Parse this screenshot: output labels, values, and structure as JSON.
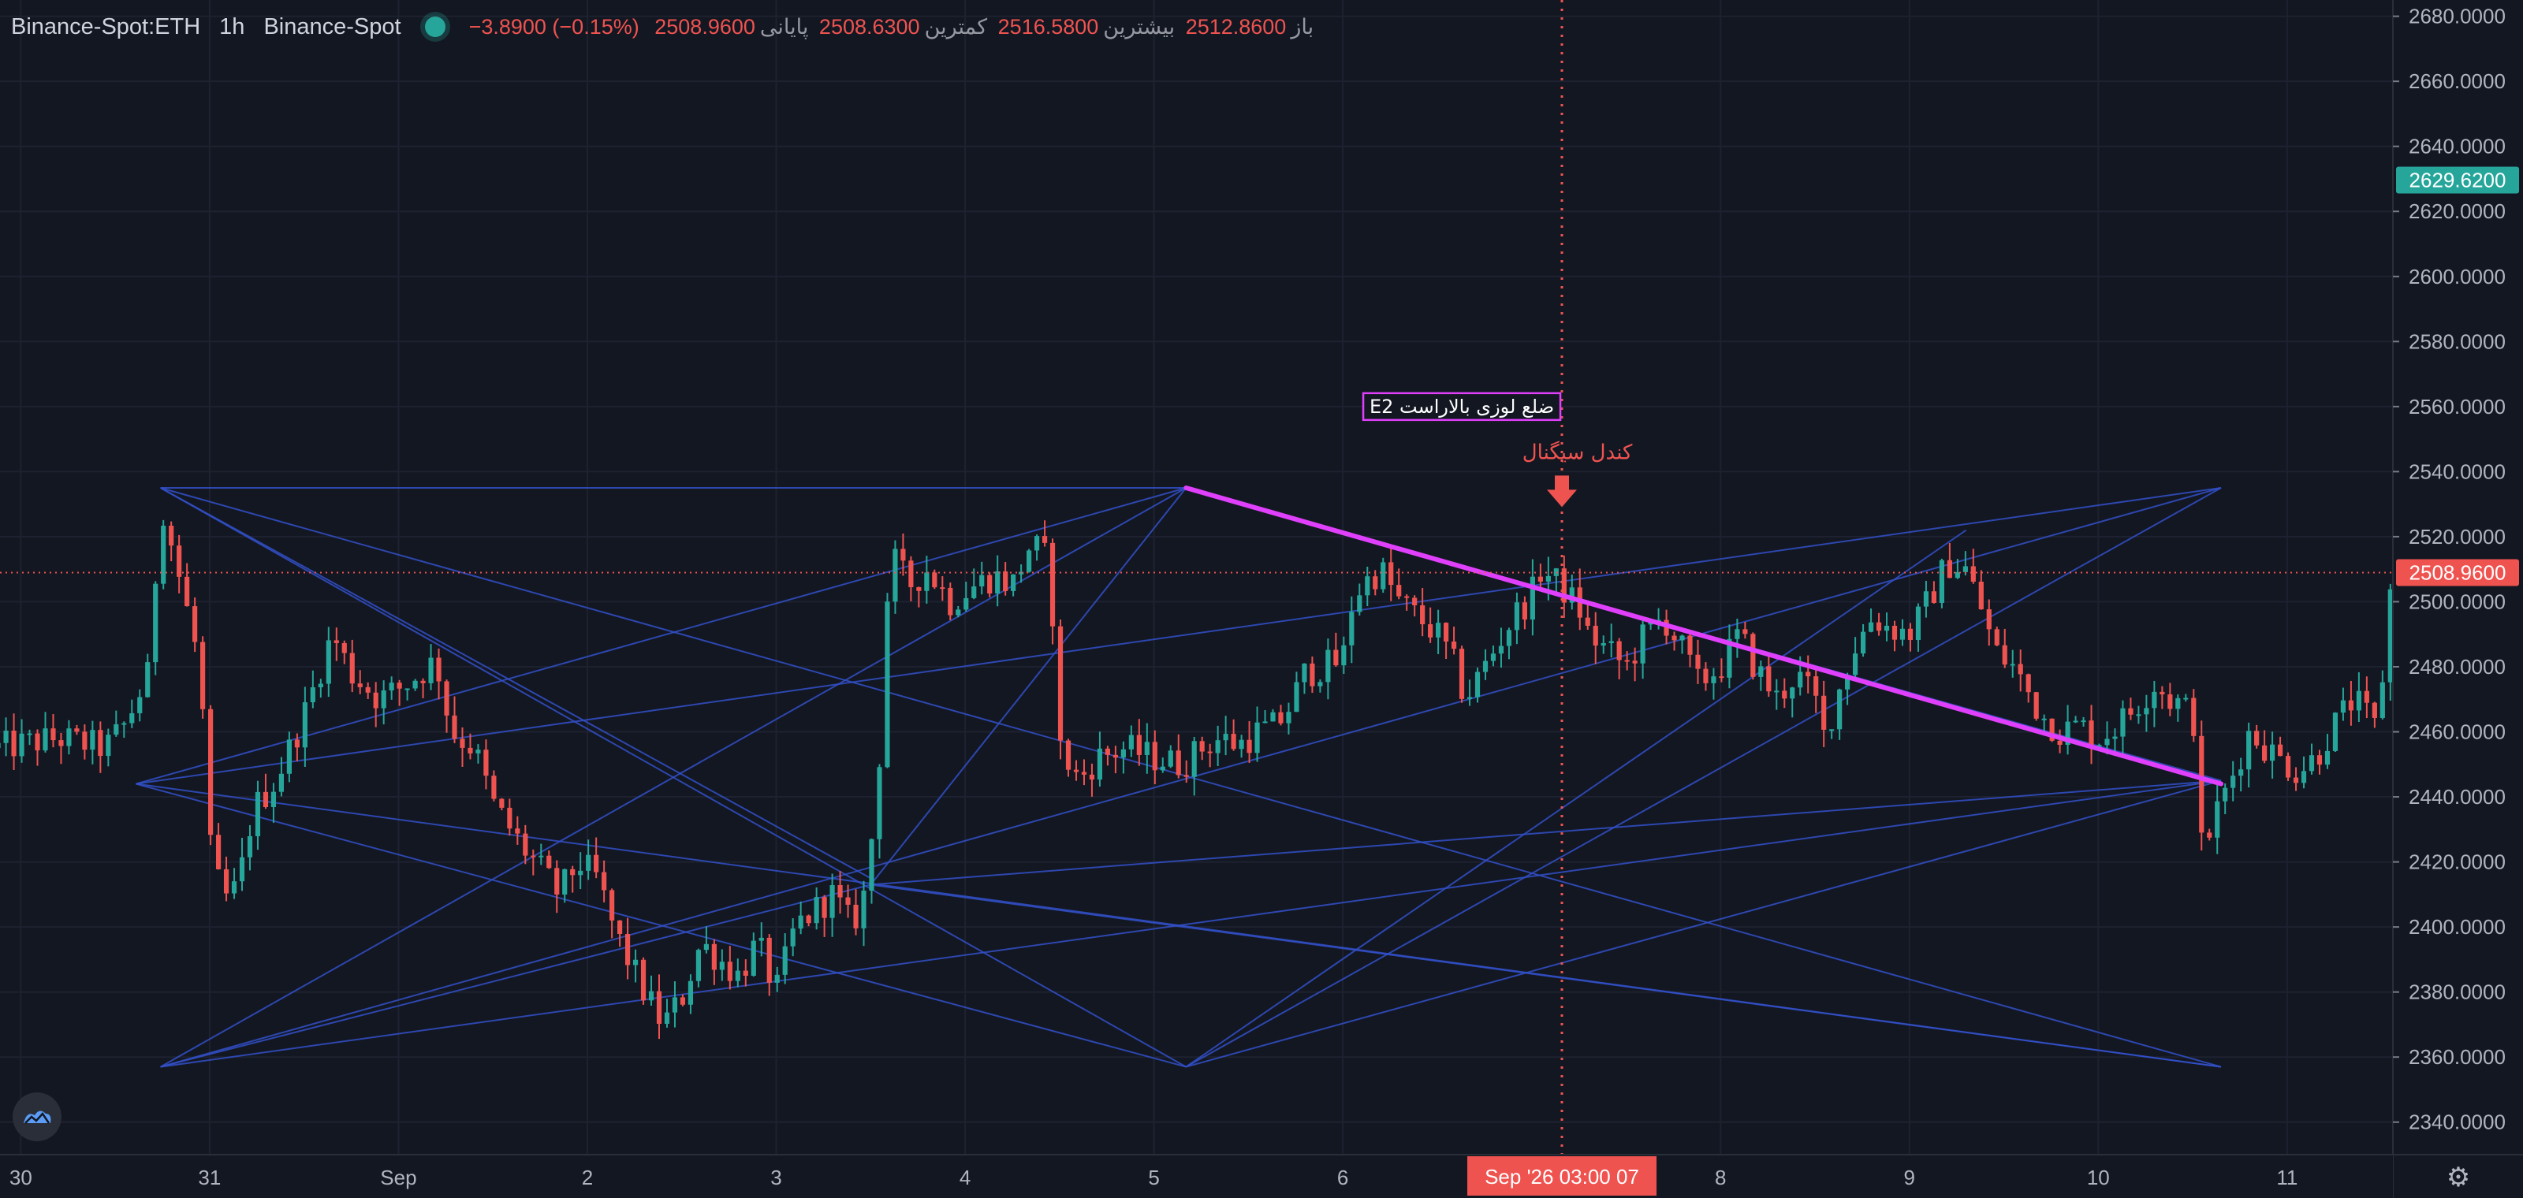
{
  "header": {
    "symbol": "Binance-Spot:ETH",
    "interval": "1h",
    "exchange": "Binance-Spot",
    "ohlc": {
      "open_label": "باز",
      "open": "2512.8600",
      "high_label": "بیشترین",
      "high": "2516.5800",
      "low_label": "کمترین",
      "low": "2508.6300",
      "close_label": "پایانی",
      "close": "2508.9600",
      "change": "−3.8900 (−0.15%)"
    }
  },
  "colors": {
    "background": "#131722",
    "grid": "#1e2230",
    "up": "#26a69a",
    "down": "#ef5350",
    "pattern_lines": "#3250c8",
    "trendline": "#e040fb"
  },
  "chart_data": {
    "type": "candlestick",
    "timeframe": "1h",
    "ylim": [
      2330,
      2685
    ],
    "y_ticks": [
      2340,
      2360,
      2380,
      2400,
      2420,
      2440,
      2460,
      2480,
      2500,
      2520,
      2540,
      2560,
      2580,
      2600,
      2620,
      2640,
      2660,
      2680
    ],
    "y_tick_labels": [
      "2340.0000",
      "2360.0000",
      "2380.0000",
      "2400.0000",
      "2420.0000",
      "2440.0000",
      "2460.0000",
      "2480.0000",
      "2500.0000",
      "2520.0000",
      "2540.0000",
      "2560.0000",
      "2580.0000",
      "2600.0000",
      "2620.0000",
      "2640.0000",
      "2660.0000",
      "2680.0000"
    ],
    "x_ticks": [
      {
        "day": 30,
        "label": "30"
      },
      {
        "day": 31,
        "label": "31"
      },
      {
        "day": 32,
        "label": "Sep"
      },
      {
        "day": 33,
        "label": "2"
      },
      {
        "day": 34,
        "label": "3"
      },
      {
        "day": 35,
        "label": "4"
      },
      {
        "day": 36,
        "label": "5"
      },
      {
        "day": 37,
        "label": "6"
      },
      {
        "day": 39,
        "label": "8"
      },
      {
        "day": 40,
        "label": "9"
      },
      {
        "day": 41,
        "label": "10"
      },
      {
        "day": 42,
        "label": "11"
      }
    ],
    "x_range_days": [
      29.89,
      42.56
    ],
    "price_path": [
      [
        29.88,
        2455
      ],
      [
        30.2,
        2458
      ],
      [
        30.45,
        2455
      ],
      [
        30.55,
        2462
      ],
      [
        30.68,
        2478
      ],
      [
        30.74,
        2532
      ],
      [
        30.85,
        2505
      ],
      [
        30.95,
        2480
      ],
      [
        31.0,
        2425
      ],
      [
        31.07,
        2408
      ],
      [
        31.15,
        2412
      ],
      [
        31.23,
        2436
      ],
      [
        31.35,
        2445
      ],
      [
        31.5,
        2465
      ],
      [
        31.65,
        2490
      ],
      [
        31.75,
        2478
      ],
      [
        31.9,
        2470
      ],
      [
        32.05,
        2475
      ],
      [
        32.2,
        2482
      ],
      [
        32.28,
        2460
      ],
      [
        32.4,
        2455
      ],
      [
        32.5,
        2438
      ],
      [
        32.65,
        2425
      ],
      [
        32.75,
        2418
      ],
      [
        32.85,
        2410
      ],
      [
        32.95,
        2420
      ],
      [
        33.05,
        2415
      ],
      [
        33.15,
        2398
      ],
      [
        33.3,
        2380
      ],
      [
        33.4,
        2370
      ],
      [
        33.5,
        2378
      ],
      [
        33.6,
        2395
      ],
      [
        33.7,
        2390
      ],
      [
        33.8,
        2385
      ],
      [
        33.9,
        2395
      ],
      [
        34.0,
        2380
      ],
      [
        34.1,
        2400
      ],
      [
        34.2,
        2405
      ],
      [
        34.3,
        2410
      ],
      [
        34.4,
        2400
      ],
      [
        34.48,
        2412
      ],
      [
        34.55,
        2455
      ],
      [
        34.6,
        2515
      ],
      [
        34.7,
        2505
      ],
      [
        34.8,
        2510
      ],
      [
        34.92,
        2500
      ],
      [
        35.05,
        2505
      ],
      [
        35.15,
        2508
      ],
      [
        35.25,
        2505
      ],
      [
        35.35,
        2518
      ],
      [
        35.45,
        2512
      ],
      [
        35.5,
        2455
      ],
      [
        35.6,
        2445
      ],
      [
        35.7,
        2452
      ],
      [
        35.85,
        2455
      ],
      [
        36.0,
        2452
      ],
      [
        36.15,
        2450
      ],
      [
        36.25,
        2455
      ],
      [
        36.35,
        2458
      ],
      [
        36.45,
        2456
      ],
      [
        36.55,
        2460
      ],
      [
        36.65,
        2462
      ],
      [
        36.72,
        2468
      ],
      [
        36.8,
        2478
      ],
      [
        36.9,
        2480
      ],
      [
        37.0,
        2482
      ],
      [
        37.05,
        2500
      ],
      [
        37.1,
        2505
      ],
      [
        37.2,
        2510
      ],
      [
        37.3,
        2500
      ],
      [
        37.4,
        2495
      ],
      [
        37.5,
        2490
      ],
      [
        37.58,
        2482
      ],
      [
        37.65,
        2470
      ],
      [
        37.7,
        2475
      ],
      [
        37.8,
        2485
      ],
      [
        37.9,
        2495
      ],
      [
        38.0,
        2502
      ],
      [
        38.05,
        2510
      ],
      [
        38.15,
        2505
      ],
      [
        38.25,
        2498
      ],
      [
        38.3,
        2490
      ],
      [
        38.4,
        2485
      ],
      [
        38.5,
        2480
      ],
      [
        38.6,
        2490
      ],
      [
        38.7,
        2495
      ],
      [
        38.8,
        2485
      ],
      [
        38.88,
        2475
      ],
      [
        39.0,
        2480
      ],
      [
        39.1,
        2490
      ],
      [
        39.18,
        2480
      ],
      [
        39.3,
        2470
      ],
      [
        39.4,
        2478
      ],
      [
        39.5,
        2470
      ],
      [
        39.55,
        2458
      ],
      [
        39.6,
        2468
      ],
      [
        39.7,
        2485
      ],
      [
        39.8,
        2495
      ],
      [
        39.9,
        2492
      ],
      [
        40.0,
        2490
      ],
      [
        40.1,
        2500
      ],
      [
        40.2,
        2512
      ],
      [
        40.3,
        2510
      ],
      [
        40.4,
        2495
      ],
      [
        40.45,
        2485
      ],
      [
        40.55,
        2480
      ],
      [
        40.6,
        2475
      ],
      [
        40.7,
        2465
      ],
      [
        40.8,
        2460
      ],
      [
        40.9,
        2462
      ],
      [
        41.0,
        2458
      ],
      [
        41.1,
        2462
      ],
      [
        41.2,
        2468
      ],
      [
        41.3,
        2475
      ],
      [
        41.38,
        2470
      ],
      [
        41.45,
        2468
      ],
      [
        41.52,
        2462
      ],
      [
        41.55,
        2420
      ],
      [
        41.6,
        2432
      ],
      [
        41.7,
        2445
      ],
      [
        41.8,
        2460
      ],
      [
        41.95,
        2452
      ],
      [
        42.05,
        2448
      ],
      [
        42.15,
        2452
      ],
      [
        42.25,
        2462
      ],
      [
        42.35,
        2470
      ],
      [
        42.42,
        2465
      ],
      [
        42.48,
        2460
      ],
      [
        42.53,
        2495
      ],
      [
        42.565,
        2512
      ],
      [
        42.58,
        2629
      ]
    ],
    "pattern_lines": [
      [
        [
          30.74,
          2535
        ],
        [
          36.17,
          2357
        ]
      ],
      [
        [
          30.74,
          2535
        ],
        [
          41.65,
          2357
        ]
      ],
      [
        [
          30.74,
          2535
        ],
        [
          34.5,
          2415
        ]
      ],
      [
        [
          30.74,
          2535
        ],
        [
          36.17,
          2535
        ]
      ],
      [
        [
          30.74,
          2357
        ],
        [
          36.17,
          2535
        ]
      ],
      [
        [
          30.74,
          2357
        ],
        [
          41.65,
          2535
        ]
      ],
      [
        [
          30.74,
          2357
        ],
        [
          41.65,
          2445
        ]
      ],
      [
        [
          30.74,
          2357
        ],
        [
          34.5,
          2413
        ]
      ],
      [
        [
          30.74,
          2357
        ],
        [
          30.74,
          2357
        ]
      ],
      [
        [
          30.61,
          2444
        ],
        [
          36.17,
          2535
        ]
      ],
      [
        [
          30.61,
          2444
        ],
        [
          41.65,
          2535
        ]
      ],
      [
        [
          30.61,
          2444
        ],
        [
          36.17,
          2357
        ]
      ],
      [
        [
          30.61,
          2444
        ],
        [
          41.65,
          2357
        ]
      ],
      [
        [
          36.17,
          2535
        ],
        [
          41.65,
          2445
        ]
      ],
      [
        [
          36.17,
          2357
        ],
        [
          41.65,
          2445
        ]
      ],
      [
        [
          36.17,
          2357
        ],
        [
          41.65,
          2535
        ]
      ],
      [
        [
          36.17,
          2357
        ],
        [
          40.3,
          2522
        ]
      ],
      [
        [
          34.5,
          2413
        ],
        [
          41.65,
          2445
        ]
      ],
      [
        [
          34.5,
          2413
        ],
        [
          41.65,
          2357
        ]
      ],
      [
        [
          34.5,
          2413
        ],
        [
          36.17,
          2535
        ]
      ]
    ],
    "trendline": [
      [
        36.17,
        2535
      ],
      [
        41.65,
        2444
      ]
    ],
    "crosshair": {
      "day": 38.16,
      "price": 2508.96,
      "label": "Sep '26   03:00 07"
    },
    "current_price": {
      "value": 2629.62,
      "label": "2629.6200"
    },
    "close_price": {
      "value": 2508.96,
      "label": "2508.9600"
    },
    "annotations": [
      {
        "text": "ضلع لوزی بالاراست E2",
        "day": 37.63,
        "price": 2560,
        "style": "box"
      },
      {
        "text": "کندل سیگنال",
        "day": 38.2,
        "price": 2540,
        "style": "signal"
      }
    ]
  }
}
